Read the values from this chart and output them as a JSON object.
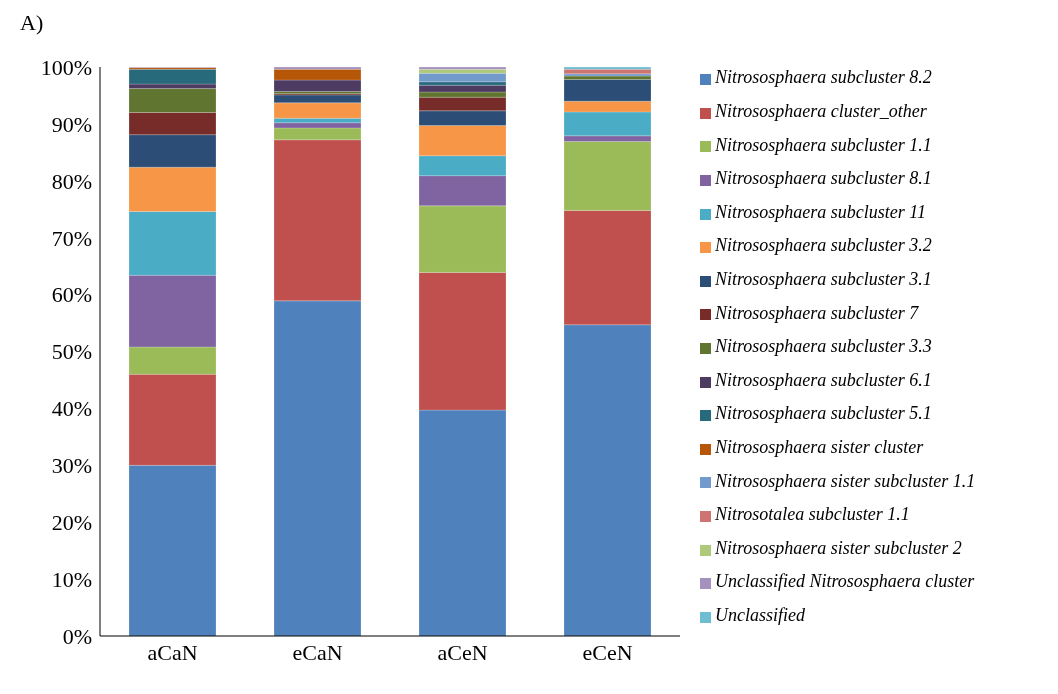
{
  "chart_data": {
    "type": "bar",
    "title": "A)",
    "stacked": true,
    "categories": [
      "aCaN",
      "eCaN",
      "aCeN",
      "eCeN"
    ],
    "ylim": [
      0,
      100
    ],
    "yticks": [
      {
        "value": 0,
        "label": "0%"
      },
      {
        "value": 10,
        "label": "10%"
      },
      {
        "value": 20,
        "label": "20%"
      },
      {
        "value": 30,
        "label": "30%"
      },
      {
        "value": 40,
        "label": "40%"
      },
      {
        "value": 50,
        "label": "50%"
      },
      {
        "value": 60,
        "label": "60%"
      },
      {
        "value": 70,
        "label": "70%"
      },
      {
        "value": 80,
        "label": "80%"
      },
      {
        "value": 90,
        "label": "90%"
      },
      {
        "value": 100,
        "label": "100%"
      }
    ],
    "grid": false,
    "legend": "right",
    "series": [
      {
        "name": "Nitrososphaera subcluster 8.2",
        "color": "#4f81bd",
        "values": [
          30.0,
          58.9,
          39.7,
          54.7
        ]
      },
      {
        "name": "Nitrososphaera cluster_other",
        "color": "#c0504d",
        "values": [
          16.0,
          28.3,
          24.2,
          20.1
        ]
      },
      {
        "name": "Nitrososphaera subcluster 1.1",
        "color": "#9bbb59",
        "values": [
          4.8,
          2.1,
          11.7,
          12.1
        ]
      },
      {
        "name": "Nitrososphaera subcluster 8.1",
        "color": "#8064a2",
        "values": [
          12.6,
          0.9,
          5.3,
          1.0
        ]
      },
      {
        "name": "Nitrososphaera subcluster 11",
        "color": "#4bacc6",
        "values": [
          11.2,
          0.8,
          3.5,
          4.2
        ]
      },
      {
        "name": "Nitrososphaera subcluster 3.2",
        "color": "#f79646",
        "values": [
          7.8,
          2.7,
          5.3,
          1.9
        ]
      },
      {
        "name": "Nitrososphaera subcluster 3.1",
        "color": "#2c4d75",
        "values": [
          5.7,
          1.4,
          2.6,
          3.8
        ]
      },
      {
        "name": "Nitrososphaera subcluster 7",
        "color": "#772c2a",
        "values": [
          3.9,
          0.2,
          2.4,
          0
        ]
      },
      {
        "name": "Nitrososphaera subcluster 3.3",
        "color": "#5f7530",
        "values": [
          4.2,
          0.4,
          0.9,
          0.6
        ]
      },
      {
        "name": "Nitrososphaera subcluster 6.1",
        "color": "#4d3b62",
        "values": [
          0.8,
          2.0,
          1.2,
          null
        ]
      },
      {
        "name": "Nitrososphaera subcluster 5.1",
        "color": "#276a7c",
        "values": [
          2.6,
          0,
          0.6,
          0
        ]
      },
      {
        "name": "Nitrososphaera sister cluster",
        "color": "#b65708",
        "values": [
          0.3,
          1.9,
          0,
          0
        ]
      },
      {
        "name": "Nitrososphaera sister subcluster 1.1",
        "color": "#729aca",
        "values": [
          0,
          0,
          1.5,
          0.4
        ]
      },
      {
        "name": "Nitrosotalea subcluster 1.1",
        "color": "#cd7371",
        "values": [
          0,
          0,
          0,
          0.8
        ]
      },
      {
        "name": "Nitrososphaera sister subcluster 2",
        "color": "#afc97a",
        "values": [
          0,
          0,
          0.7,
          0
        ]
      },
      {
        "name": "Unclassified Nitrososphaera cluster",
        "color": "#a491bd",
        "values": [
          0.1,
          0.4,
          0.4,
          0
        ]
      },
      {
        "name": "Unclassified",
        "color": "#6fbdd1",
        "values": [
          0,
          0,
          0,
          0.4
        ]
      }
    ]
  }
}
